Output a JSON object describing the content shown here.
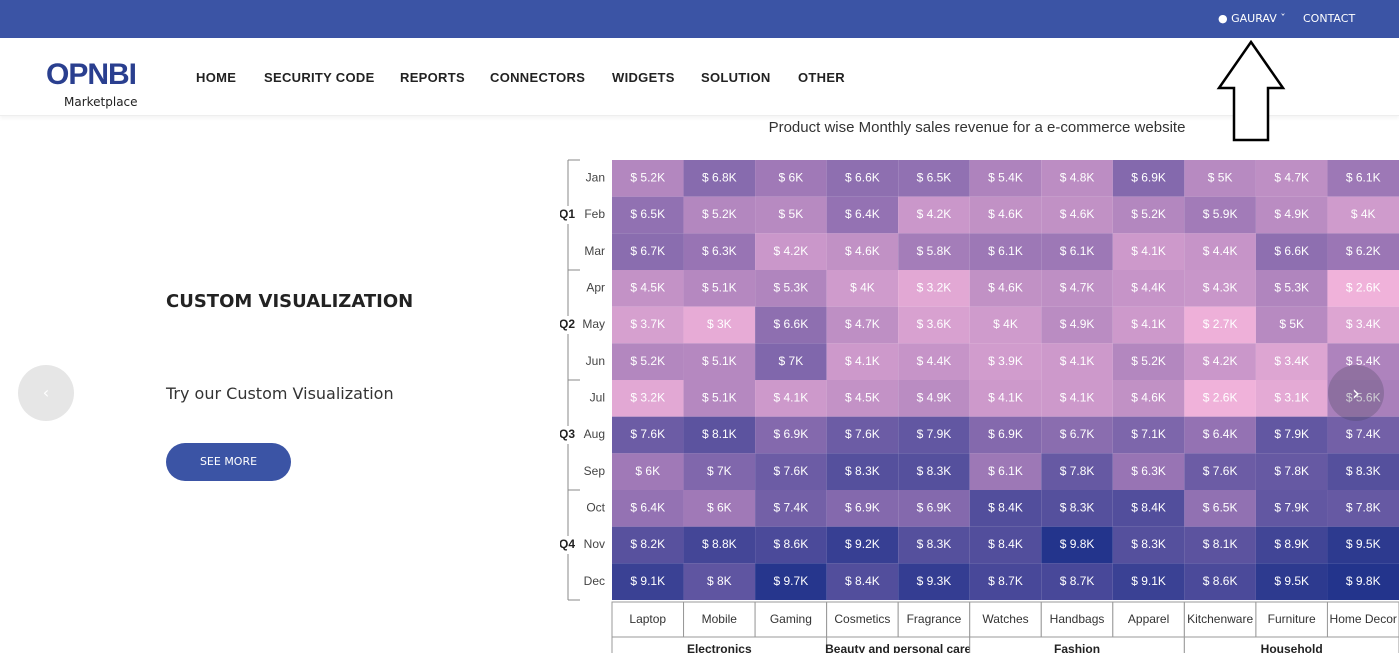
{
  "topbar": {
    "user": "GAURAV",
    "contact": "CONTACT"
  },
  "logo": {
    "brand": "OPNBI",
    "sub": "Marketplace"
  },
  "nav": [
    "HOME",
    "SECURITY CODE",
    "REPORTS",
    "CONNECTORS",
    "WIDGETS",
    "SOLUTION",
    "OTHER"
  ],
  "hero": {
    "title": "CUSTOM VISUALIZATION",
    "text": "Try our Custom Visualization",
    "button": "SEE MORE"
  },
  "heatmap": {
    "title": "Product wise Monthly sales revenue for a e-commerce website",
    "quarters": [
      "Q1",
      "Q2",
      "Q3",
      "Q4"
    ],
    "months": [
      "Jan",
      "Feb",
      "Mar",
      "Apr",
      "May",
      "Jun",
      "Jul",
      "Aug",
      "Sep",
      "Oct",
      "Nov",
      "Dec"
    ],
    "categories": [
      "Laptop",
      "Mobile",
      "Gaming",
      "Cosmetics",
      "Fragrance",
      "Watches",
      "Handbags",
      "Apparel",
      "Kitchenware",
      "Furniture",
      "Home Decor"
    ],
    "groups": [
      "Electronics",
      "Beauty and personal care",
      "Fashion",
      "Household"
    ],
    "rows": [
      [
        "$ 5.2K",
        "$ 6.8K",
        "$ 6K",
        "$ 6.6K",
        "$ 6.5K",
        "$ 5.4K",
        "$ 4.8K",
        "$ 6.9K",
        "$ 5K",
        "$ 4.7K",
        "$ 6.1K"
      ],
      [
        "$ 6.5K",
        "$ 5.2K",
        "$ 5K",
        "$ 6.4K",
        "$ 4.2K",
        "$ 4.6K",
        "$ 4.6K",
        "$ 5.2K",
        "$ 5.9K",
        "$ 4.9K",
        "$ 4K"
      ],
      [
        "$ 6.7K",
        "$ 6.3K",
        "$ 4.2K",
        "$ 4.6K",
        "$ 5.8K",
        "$ 6.1K",
        "$ 6.1K",
        "$ 4.1K",
        "$ 4.4K",
        "$ 6.6K",
        "$ 6.2K"
      ],
      [
        "$ 4.5K",
        "$ 5.1K",
        "$ 5.3K",
        "$ 4K",
        "$ 3.2K",
        "$ 4.6K",
        "$ 4.7K",
        "$ 4.4K",
        "$ 4.3K",
        "$ 5.3K",
        "$ 2.6K"
      ],
      [
        "$ 3.7K",
        "$ 3K",
        "$ 6.6K",
        "$ 4.7K",
        "$ 3.6K",
        "$ 4K",
        "$ 4.9K",
        "$ 4.1K",
        "$ 2.7K",
        "$ 5K",
        "$ 3.4K"
      ],
      [
        "$ 5.2K",
        "$ 5.1K",
        "$ 7K",
        "$ 4.1K",
        "$ 4.4K",
        "$ 3.9K",
        "$ 4.1K",
        "$ 5.2K",
        "$ 4.2K",
        "$ 3.4K",
        "$ 5.4K"
      ],
      [
        "$ 3.2K",
        "$ 5.1K",
        "$ 4.1K",
        "$ 4.5K",
        "$ 4.9K",
        "$ 4.1K",
        "$ 4.1K",
        "$ 4.6K",
        "$ 2.6K",
        "$ 3.1K",
        "$ 5.6K"
      ],
      [
        "$ 7.6K",
        "$ 8.1K",
        "$ 6.9K",
        "$ 7.6K",
        "$ 7.9K",
        "$ 6.9K",
        "$ 6.7K",
        "$ 7.1K",
        "$ 6.4K",
        "$ 7.9K",
        "$ 7.4K"
      ],
      [
        "$ 6K",
        "$ 7K",
        "$ 7.6K",
        "$ 8.3K",
        "$ 8.3K",
        "$ 6.1K",
        "$ 7.8K",
        "$ 6.3K",
        "$ 7.6K",
        "$ 7.8K",
        "$ 8.3K"
      ],
      [
        "$ 6.4K",
        "$ 6K",
        "$ 7.4K",
        "$ 6.9K",
        "$ 6.9K",
        "$ 8.4K",
        "$ 8.3K",
        "$ 8.4K",
        "$ 6.5K",
        "$ 7.9K",
        "$ 7.8K"
      ],
      [
        "$ 8.2K",
        "$ 8.8K",
        "$ 8.6K",
        "$ 9.2K",
        "$ 8.3K",
        "$ 8.4K",
        "$ 9.8K",
        "$ 8.3K",
        "$ 8.1K",
        "$ 8.9K",
        "$ 9.5K"
      ],
      [
        "$ 9.1K",
        "$ 8K",
        "$ 9.7K",
        "$ 8.4K",
        "$ 9.3K",
        "$ 8.7K",
        "$ 8.7K",
        "$ 9.1K",
        "$ 8.6K",
        "$ 9.5K",
        "$ 9.8K"
      ]
    ]
  }
}
